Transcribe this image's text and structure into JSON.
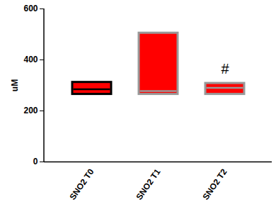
{
  "chart_data": {
    "type": "box",
    "categories": [
      "SNO2 T0",
      "SNO2 T1",
      "SNO2 T2"
    ],
    "min": [
      265,
      265,
      265
    ],
    "max": [
      312,
      505,
      308
    ],
    "median": [
      285,
      278,
      290
    ],
    "color": "#ff0000",
    "ylabel": "uM",
    "ylim": [
      0,
      600
    ],
    "yticks": [
      0,
      200,
      400,
      600
    ],
    "grid": false,
    "annotations": [
      {
        "category": "SNO2 T2",
        "text": "#"
      }
    ]
  }
}
